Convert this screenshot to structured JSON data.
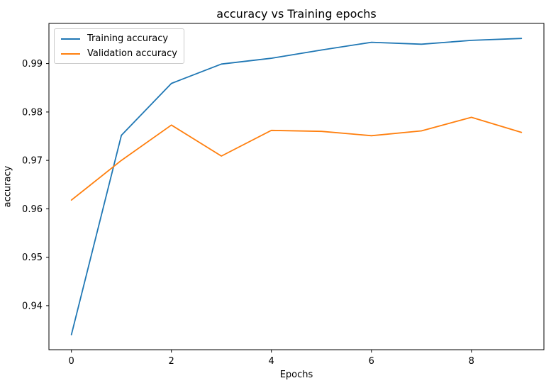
{
  "chart_data": {
    "type": "line",
    "title": "accuracy vs Training epochs",
    "xlabel": "Epochs",
    "ylabel": "accuracy",
    "x": [
      0,
      1,
      2,
      3,
      4,
      5,
      6,
      7,
      8,
      9
    ],
    "series": [
      {
        "name": "Training accuracy",
        "color": "#1f77b4",
        "values": [
          0.934,
          0.9752,
          0.9859,
          0.9899,
          0.9911,
          0.9928,
          0.9944,
          0.994,
          0.9948,
          0.9952
        ]
      },
      {
        "name": "Validation accuracy",
        "color": "#ff7f0e",
        "values": [
          0.9618,
          0.97,
          0.9773,
          0.9709,
          0.9762,
          0.976,
          0.9751,
          0.9761,
          0.9789,
          0.9758
        ]
      }
    ],
    "xlim": [
      -0.45,
      9.45
    ],
    "ylim": [
      0.9309,
      0.9983
    ],
    "xticks": [
      0,
      2,
      4,
      6,
      8
    ],
    "xtick_labels": [
      "0",
      "2",
      "4",
      "6",
      "8"
    ],
    "yticks": [
      0.94,
      0.95,
      0.96,
      0.97,
      0.98,
      0.99
    ],
    "ytick_labels": [
      "0.94",
      "0.95",
      "0.96",
      "0.97",
      "0.98",
      "0.99"
    ],
    "grid": false,
    "legend_position": "upper left",
    "axis_color": "#000000",
    "background_color": "#ffffff"
  }
}
